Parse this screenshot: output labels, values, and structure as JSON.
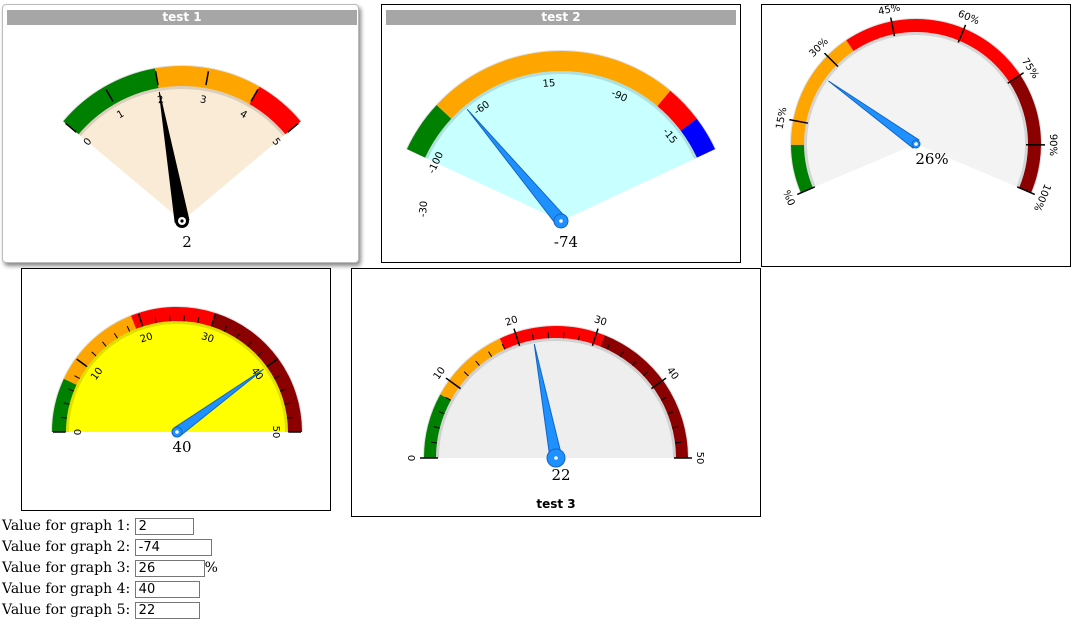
{
  "gauges": [
    {
      "title": "test 1",
      "value": 2,
      "value_text": "2",
      "arc_fill": "#faebd7",
      "needle_color": "#000000",
      "ticks": [
        "0",
        "1",
        "2",
        "3",
        "4",
        "5"
      ],
      "bands": [
        {
          "color": "#008000"
        },
        {
          "color": "#ffa500"
        },
        {
          "color": "#ff0000"
        }
      ]
    },
    {
      "title": "test 2",
      "value": -74,
      "value_text": "-74",
      "arc_fill": "#c8ffff",
      "needle_color": "#1e90ff",
      "ticks": [
        "-30",
        "-100",
        "-60",
        "15",
        "-90",
        "-15"
      ],
      "bands": [
        {
          "color": "#008000"
        },
        {
          "color": "#ffa500"
        },
        {
          "color": "#ff0000"
        },
        {
          "color": "#0000ff"
        }
      ]
    },
    {
      "title": "",
      "value": 26,
      "value_text": "26%",
      "arc_fill": "#f3f3f3",
      "needle_color": "#1e90ff",
      "ticks": [
        "0%",
        "15%",
        "30%",
        "45%",
        "60%",
        "75%",
        "90%",
        "100%"
      ],
      "bands": [
        {
          "color": "#008000"
        },
        {
          "color": "#ffa500"
        },
        {
          "color": "#ff0000"
        },
        {
          "color": "#8b0000"
        }
      ]
    },
    {
      "title": "",
      "value": 40,
      "value_text": "40",
      "arc_fill": "#ffff00",
      "needle_color": "#1e90ff",
      "ticks": [
        "0",
        "10",
        "20",
        "30",
        "40",
        "50"
      ],
      "bands": [
        {
          "color": "#008000"
        },
        {
          "color": "#ffa500"
        },
        {
          "color": "#ff0000"
        },
        {
          "color": "#8b0000"
        }
      ]
    },
    {
      "title": "test 3",
      "value": 22,
      "value_text": "22",
      "arc_fill": "#eeeeee",
      "needle_color": "#1e90ff",
      "ticks": [
        "0",
        "10",
        "20",
        "30",
        "40",
        "50"
      ],
      "bands": [
        {
          "color": "#008000"
        },
        {
          "color": "#ffa500"
        },
        {
          "color": "#ff0000"
        },
        {
          "color": "#8b0000"
        }
      ]
    }
  ],
  "form": [
    {
      "label": "Value for graph 1:",
      "value": "2",
      "suffix": ""
    },
    {
      "label": "Value for graph 2:",
      "value": "-74",
      "suffix": ""
    },
    {
      "label": "Value for graph 3:",
      "value": "26",
      "suffix": "%"
    },
    {
      "label": "Value for graph 4:",
      "value": "40",
      "suffix": ""
    },
    {
      "label": "Value for graph 5:",
      "value": "22",
      "suffix": ""
    }
  ]
}
